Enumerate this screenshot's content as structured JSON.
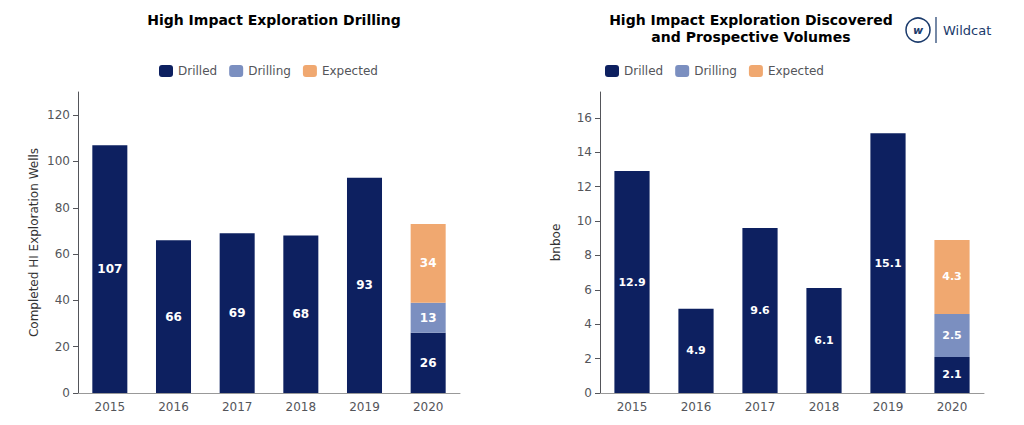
{
  "chart_data": [
    {
      "type": "bar",
      "title": "High Impact Exploration Drilling",
      "ylabel": "Completed HI Exploration Wells",
      "categories": [
        "2015",
        "2016",
        "2017",
        "2018",
        "2019",
        "2020"
      ],
      "series": [
        {
          "name": "Drilled",
          "color": "#0d2060",
          "values": [
            107,
            66,
            69,
            68,
            93,
            26
          ]
        },
        {
          "name": "Drilling",
          "color": "#7b8fc0",
          "values": [
            0,
            0,
            0,
            0,
            0,
            13
          ]
        },
        {
          "name": "Expected",
          "color": "#f0a870",
          "values": [
            0,
            0,
            0,
            0,
            0,
            34
          ]
        }
      ],
      "stacked": true,
      "data_labels": true,
      "ylim": [
        0,
        130
      ],
      "yticks": [
        0,
        20,
        40,
        60,
        80,
        100,
        120
      ],
      "grid": false,
      "legend": "top"
    },
    {
      "type": "bar",
      "title": "High Impact Exploration Discovered",
      "subtitle": "and Prospective Volumes",
      "ylabel": "bnboe",
      "categories": [
        "2015",
        "2016",
        "2017",
        "2018",
        "2019",
        "2020"
      ],
      "series": [
        {
          "name": "Drilled",
          "color": "#0d2060",
          "values": [
            12.9,
            4.9,
            9.6,
            6.1,
            15.1,
            2.1
          ]
        },
        {
          "name": "Drilling",
          "color": "#7b8fc0",
          "values": [
            0,
            0,
            0,
            0,
            0,
            2.5
          ]
        },
        {
          "name": "Expected",
          "color": "#f0a870",
          "values": [
            0,
            0,
            0,
            0,
            0,
            4.3
          ]
        }
      ],
      "stacked": true,
      "data_labels": true,
      "ylim": [
        0,
        17.5
      ],
      "yticks": [
        0,
        2,
        4,
        6,
        8,
        10,
        12,
        14,
        16
      ],
      "grid": false,
      "legend": "upper left",
      "annotations": [
        {
          "text": "w",
          "color": "#1a3a6b"
        },
        {
          "text": "Wildcat",
          "color": "#1a3a6b"
        }
      ]
    }
  ]
}
